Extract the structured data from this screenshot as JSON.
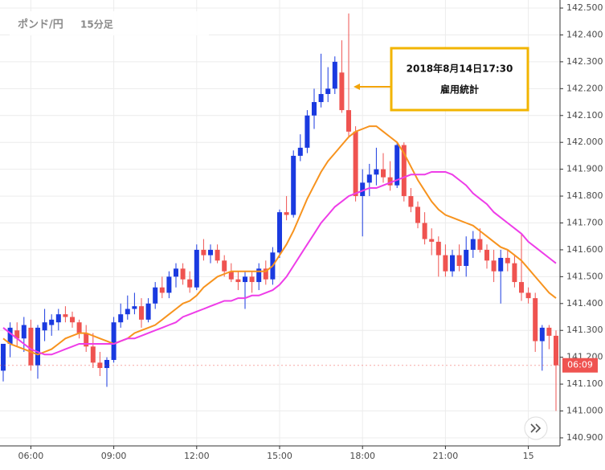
{
  "chart_data": {
    "type": "candlestick",
    "title": "ポンド/円",
    "subtitle": "15分足",
    "annotation": {
      "lines": [
        "2018年8月14日17:30",
        "雇用統計"
      ]
    },
    "price_label": "06:09",
    "up_color": "#1a3ae0",
    "down_color": "#ef5350",
    "categories": [
      null,
      null,
      null,
      null,
      "06:00",
      null,
      null,
      null,
      null,
      null,
      null,
      null,
      null,
      null,
      null,
      null,
      "09:00",
      null,
      null,
      null,
      null,
      null,
      null,
      null,
      null,
      null,
      null,
      null,
      "12:00",
      null,
      null,
      null,
      null,
      null,
      null,
      null,
      null,
      null,
      null,
      null,
      "15:00",
      null,
      null,
      null,
      null,
      null,
      null,
      null,
      null,
      null,
      null,
      null,
      "18:00",
      null,
      null,
      null,
      null,
      null,
      null,
      null,
      null,
      null,
      null,
      null,
      "21:00",
      null,
      null,
      null,
      null,
      null,
      null,
      null,
      null,
      null,
      null,
      null,
      "15",
      null,
      null,
      null,
      null
    ],
    "open": [
      141.15,
      141.25,
      141.3,
      141.27,
      141.31,
      141.17,
      141.3,
      141.32,
      141.33,
      141.36,
      141.35,
      141.33,
      141.29,
      141.24,
      141.18,
      141.16,
      141.19,
      141.33,
      141.36,
      141.38,
      141.39,
      141.34,
      141.4,
      141.46,
      141.44,
      141.5,
      141.53,
      141.49,
      141.46,
      141.6,
      141.58,
      141.6,
      141.56,
      141.52,
      141.49,
      141.48,
      141.5,
      141.48,
      141.53,
      141.49,
      141.59,
      141.74,
      141.73,
      141.95,
      141.98,
      142.1,
      142.15,
      142.18,
      142.2,
      142.26,
      142.12,
      142.04,
      141.8,
      141.85,
      141.88,
      141.9,
      141.87,
      141.84,
      141.99,
      141.8,
      141.76,
      141.7,
      141.64,
      141.63,
      141.58,
      141.52,
      141.58,
      141.54,
      141.6,
      141.64,
      141.6,
      141.56,
      141.52,
      141.57,
      141.55,
      141.48,
      141.44,
      141.42,
      141.26,
      141.31,
      141.28
    ],
    "high": [
      141.25,
      141.33,
      141.33,
      141.35,
      141.34,
      141.32,
      141.38,
      141.36,
      141.38,
      141.39,
      141.37,
      141.34,
      141.32,
      141.29,
      141.22,
      141.2,
      141.35,
      141.4,
      141.43,
      141.44,
      141.42,
      141.42,
      141.48,
      141.5,
      141.52,
      141.55,
      141.55,
      141.52,
      141.62,
      141.64,
      141.62,
      141.62,
      141.58,
      141.55,
      141.52,
      141.52,
      141.52,
      141.55,
      141.56,
      141.61,
      141.75,
      141.8,
      141.97,
      142.03,
      142.12,
      142.2,
      142.33,
      142.28,
      142.32,
      142.38,
      142.48,
      142.06,
      141.9,
      141.92,
      141.98,
      141.96,
      141.93,
      142.0,
      142.0,
      141.83,
      141.78,
      141.74,
      141.68,
      141.65,
      141.62,
      141.6,
      141.62,
      141.65,
      141.67,
      141.68,
      141.62,
      141.6,
      141.6,
      141.6,
      141.58,
      141.66,
      141.46,
      141.44,
      141.32,
      141.32,
      141.3
    ],
    "low": [
      141.11,
      141.2,
      141.24,
      141.22,
      141.15,
      141.12,
      141.26,
      141.28,
      141.3,
      141.33,
      141.31,
      141.27,
      141.22,
      141.16,
      141.13,
      141.09,
      141.18,
      141.31,
      141.34,
      141.36,
      141.31,
      141.33,
      141.38,
      141.42,
      141.42,
      141.46,
      141.47,
      141.44,
      141.45,
      141.56,
      141.55,
      141.55,
      141.5,
      141.48,
      141.45,
      141.38,
      141.44,
      141.45,
      141.47,
      141.47,
      141.57,
      141.71,
      141.72,
      141.93,
      141.96,
      142.05,
      142.13,
      142.15,
      142.18,
      142.11,
      142.02,
      141.78,
      141.65,
      141.8,
      141.84,
      141.85,
      141.82,
      141.83,
      141.78,
      141.74,
      141.68,
      141.62,
      141.58,
      141.5,
      141.5,
      141.5,
      141.52,
      141.5,
      141.57,
      141.59,
      141.53,
      141.48,
      141.4,
      141.52,
      141.46,
      141.41,
      141.4,
      141.22,
      141.15,
      141.23,
      141.0
    ],
    "close": [
      141.25,
      141.31,
      141.27,
      141.32,
      141.17,
      141.31,
      141.33,
      141.34,
      141.36,
      141.35,
      141.33,
      141.29,
      141.24,
      141.18,
      141.16,
      141.19,
      141.33,
      141.36,
      141.38,
      141.39,
      141.34,
      141.4,
      141.46,
      141.44,
      141.5,
      141.53,
      141.49,
      141.46,
      141.6,
      141.58,
      141.6,
      141.56,
      141.52,
      141.49,
      141.48,
      141.5,
      141.48,
      141.53,
      141.49,
      141.59,
      141.74,
      141.73,
      141.95,
      141.98,
      142.1,
      142.15,
      142.18,
      142.2,
      142.3,
      142.12,
      142.04,
      141.8,
      141.85,
      141.88,
      141.9,
      141.87,
      141.84,
      141.99,
      141.8,
      141.76,
      141.7,
      141.64,
      141.63,
      141.58,
      141.52,
      141.58,
      141.54,
      141.6,
      141.64,
      141.6,
      141.56,
      141.52,
      141.57,
      141.55,
      141.48,
      141.44,
      141.42,
      141.26,
      141.31,
      141.28,
      141.17
    ],
    "lines": [
      {
        "color": "#f7931e",
        "values": [
          141.27,
          141.25,
          141.24,
          141.23,
          141.22,
          141.21,
          141.22,
          141.23,
          141.25,
          141.27,
          141.28,
          141.29,
          141.29,
          141.28,
          141.27,
          141.26,
          141.25,
          141.26,
          141.27,
          141.29,
          141.3,
          141.31,
          141.32,
          141.34,
          141.36,
          141.38,
          141.4,
          141.41,
          141.43,
          141.46,
          141.48,
          141.5,
          141.51,
          141.52,
          141.52,
          141.52,
          141.52,
          141.52,
          141.52,
          141.54,
          141.58,
          141.62,
          141.67,
          141.73,
          141.79,
          141.84,
          141.89,
          141.93,
          141.96,
          141.99,
          142.02,
          142.04,
          142.05,
          142.06,
          142.06,
          142.04,
          142.02,
          142.0,
          141.96,
          141.91,
          141.86,
          141.82,
          141.78,
          141.75,
          141.73,
          141.72,
          141.71,
          141.7,
          141.69,
          141.67,
          141.65,
          141.63,
          141.61,
          141.6,
          141.58,
          141.56,
          141.53,
          141.5,
          141.47,
          141.44,
          141.42
        ]
      },
      {
        "color": "#ee3de8",
        "values": [
          141.31,
          141.29,
          141.27,
          141.25,
          141.23,
          141.22,
          141.21,
          141.21,
          141.22,
          141.23,
          141.24,
          141.25,
          141.25,
          141.25,
          141.25,
          141.25,
          141.25,
          141.26,
          141.27,
          141.27,
          141.28,
          141.29,
          141.3,
          141.31,
          141.32,
          141.33,
          141.35,
          141.36,
          141.37,
          141.38,
          141.39,
          141.4,
          141.41,
          141.41,
          141.42,
          141.42,
          141.43,
          141.43,
          141.44,
          141.45,
          141.47,
          141.5,
          141.54,
          141.58,
          141.62,
          141.66,
          141.7,
          141.73,
          141.76,
          141.78,
          141.8,
          141.81,
          141.82,
          141.83,
          141.83,
          141.84,
          141.85,
          141.86,
          141.87,
          141.88,
          141.88,
          141.88,
          141.89,
          141.89,
          141.89,
          141.88,
          141.86,
          141.84,
          141.81,
          141.79,
          141.77,
          141.74,
          141.72,
          141.7,
          141.68,
          141.66,
          141.63,
          141.61,
          141.59,
          141.57,
          141.55
        ]
      }
    ],
    "ylim": [
      140.87,
      142.53
    ],
    "yticks": [
      {
        "value": 140.9,
        "label": "140.900"
      },
      {
        "value": 141.0,
        "label": "141.000"
      },
      {
        "value": 141.1,
        "label": "141.100"
      },
      {
        "value": 141.2,
        "label": "141.200"
      },
      {
        "value": 141.3,
        "label": "141.300"
      },
      {
        "value": 141.4,
        "label": "141.400"
      },
      {
        "value": 141.5,
        "label": "141.500"
      },
      {
        "value": 141.6,
        "label": "141.600"
      },
      {
        "value": 141.7,
        "label": "141.700"
      },
      {
        "value": 141.8,
        "label": "141.800"
      },
      {
        "value": 141.9,
        "label": "141.900"
      },
      {
        "value": 142.0,
        "label": "142.000"
      },
      {
        "value": 142.1,
        "label": "142.100"
      },
      {
        "value": 142.2,
        "label": "142.200"
      },
      {
        "value": 142.3,
        "label": "142.300"
      },
      {
        "value": 142.4,
        "label": "142.400"
      },
      {
        "value": 142.5,
        "label": "142.500"
      }
    ],
    "grid": true
  }
}
